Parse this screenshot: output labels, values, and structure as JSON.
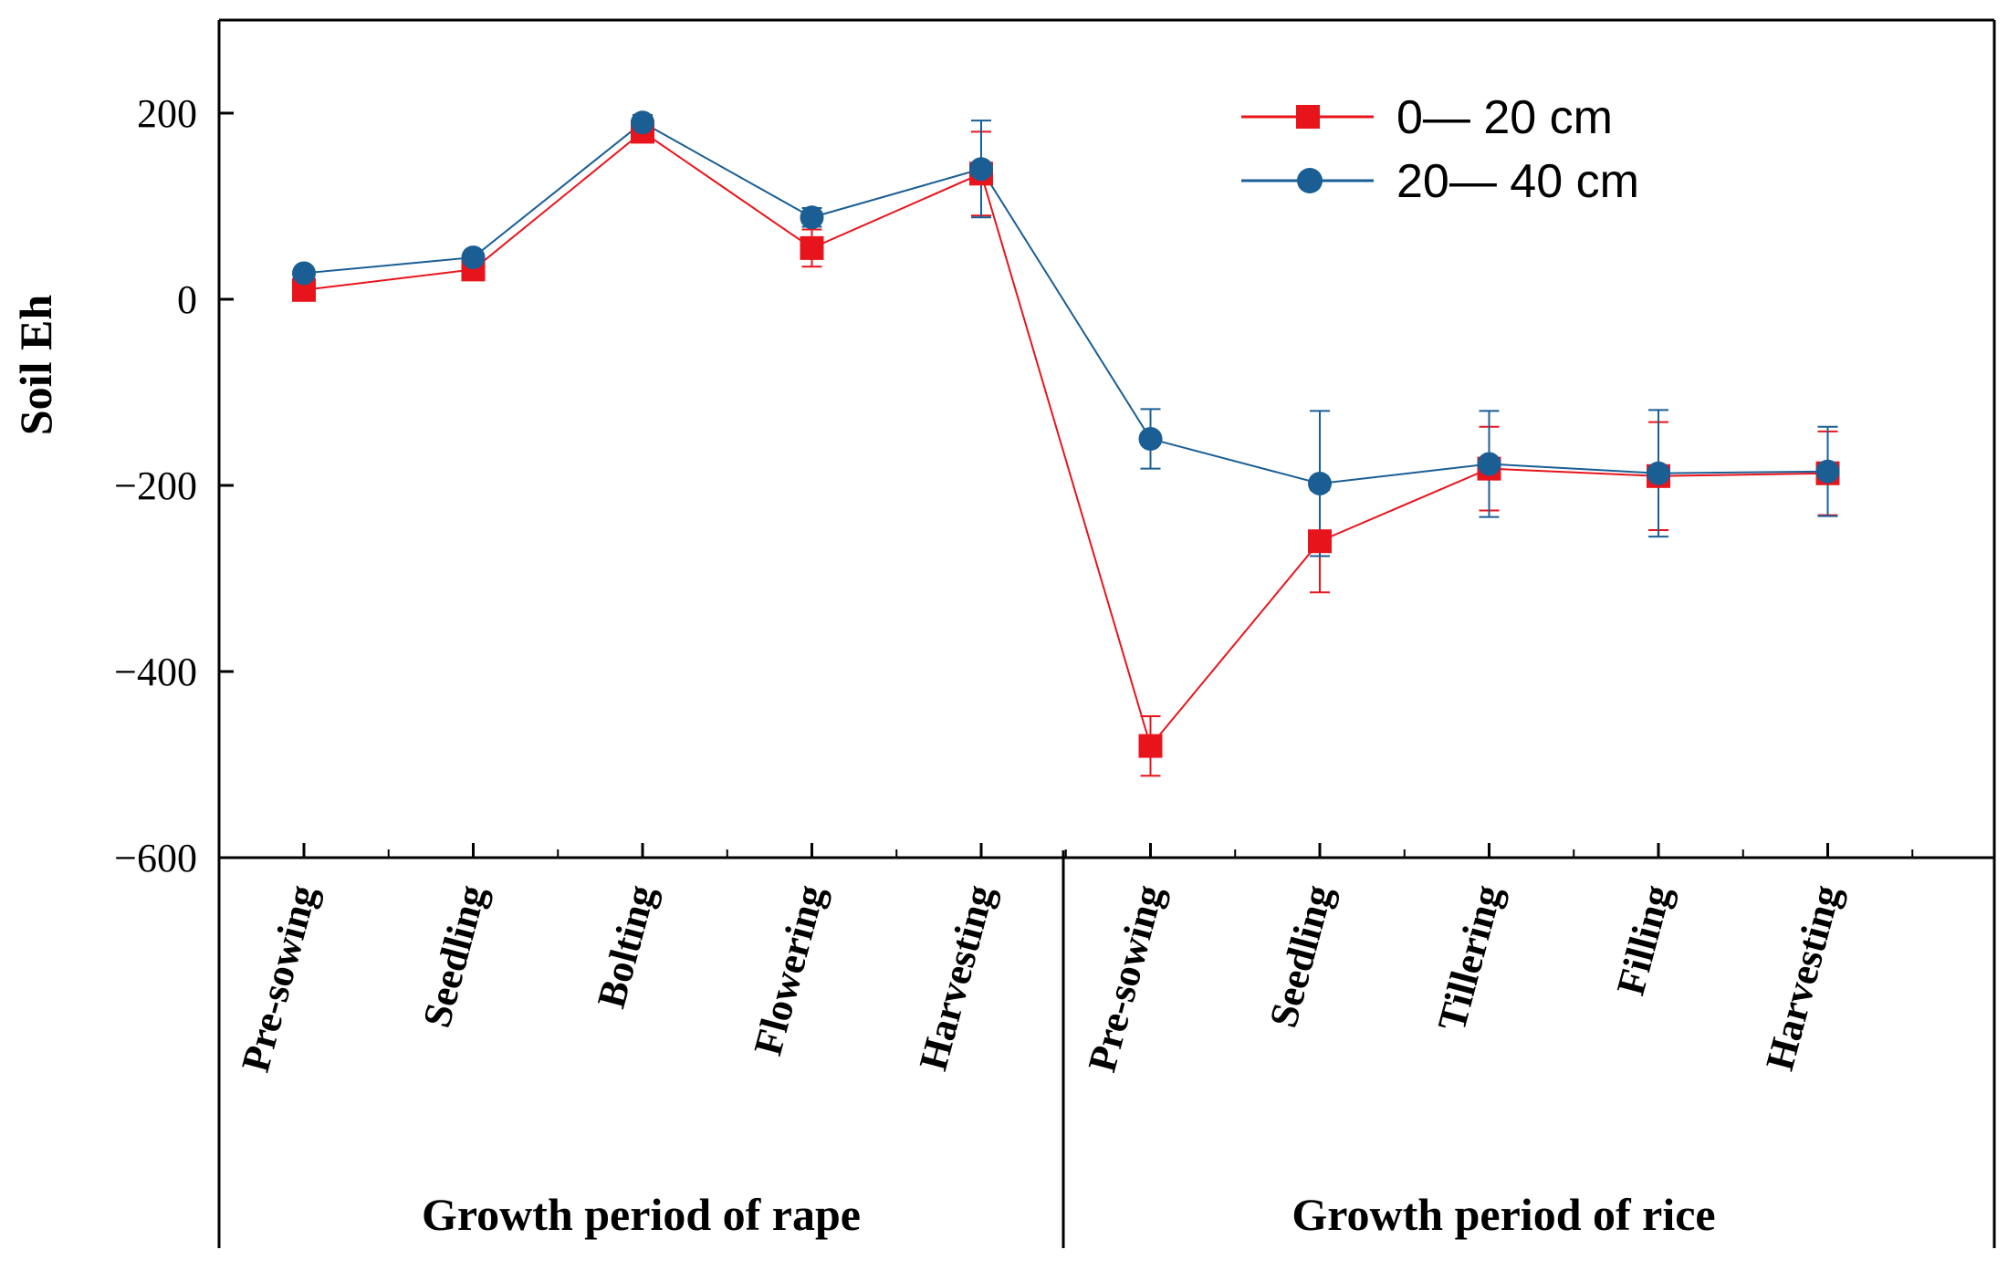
{
  "chart_data": {
    "type": "line",
    "title": "",
    "ylabel": "Soil Eh",
    "xlabel": "",
    "ylim": [
      -600,
      300
    ],
    "yticks": [
      -600,
      -400,
      -200,
      0,
      200
    ],
    "ytick_labels": [
      "−600",
      "−400",
      "−200",
      "0",
      "200"
    ],
    "categories": [
      "Pre-sowing",
      "Seedling",
      "Bolting",
      "Flowering",
      "Harvesting",
      "Pre-sowing",
      "Seedling",
      "Tillering",
      "Filling",
      "Harvesting"
    ],
    "groups": [
      {
        "label": "Growth period of rape",
        "count": 5
      },
      {
        "label": "Growth period of rice",
        "count": 5
      }
    ],
    "series": [
      {
        "name": "0— 20 cm",
        "color": "#e8141c",
        "marker": "square",
        "values": [
          10,
          32,
          180,
          55,
          135,
          -480,
          -260,
          -182,
          -190,
          -187
        ],
        "errors": [
          6,
          8,
          10,
          20,
          45,
          32,
          55,
          45,
          58,
          45
        ]
      },
      {
        "name": "20— 40 cm",
        "color": "#1a5e94",
        "marker": "circle",
        "values": [
          28,
          45,
          190,
          88,
          140,
          -150,
          -198,
          -177,
          -187,
          -185
        ],
        "errors": [
          5,
          6,
          8,
          10,
          52,
          32,
          78,
          57,
          68,
          48
        ]
      }
    ],
    "legend_position": "top-right",
    "grid": false
  }
}
